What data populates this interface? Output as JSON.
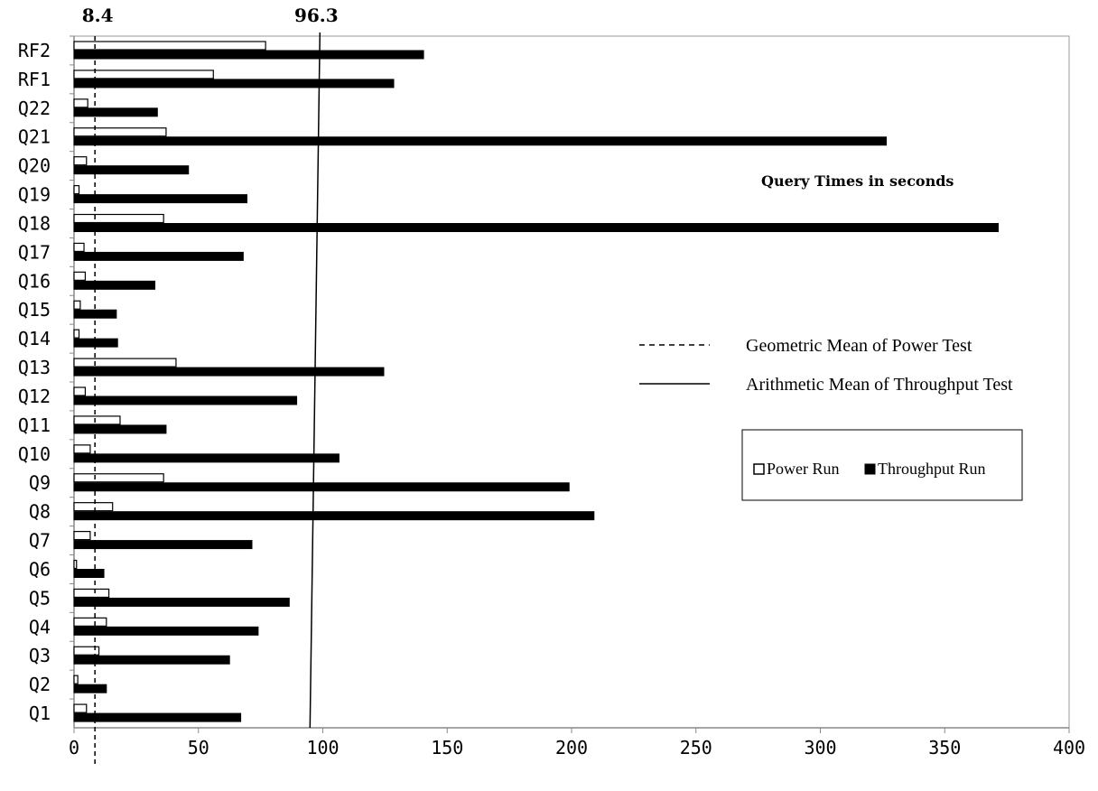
{
  "chart_data": {
    "type": "bar",
    "orientation": "horizontal",
    "categories": [
      "Q1",
      "Q2",
      "Q3",
      "Q4",
      "Q5",
      "Q6",
      "Q7",
      "Q8",
      "Q9",
      "Q10",
      "Q11",
      "Q12",
      "Q13",
      "Q14",
      "Q15",
      "Q16",
      "Q17",
      "Q18",
      "Q19",
      "Q20",
      "Q21",
      "Q22",
      "RF1",
      "RF2"
    ],
    "series": [
      {
        "name": "Power Run",
        "color": "#ffffff",
        "stroke": "#000000",
        "values": [
          5,
          1.5,
          10,
          13,
          14,
          1,
          6.5,
          15.5,
          36,
          6.5,
          18.5,
          4.5,
          41,
          2,
          2.5,
          4.5,
          4,
          36,
          2,
          5,
          37,
          5.5,
          56,
          77
        ]
      },
      {
        "name": "Throughput Run",
        "color": "#000000",
        "stroke": "#000000",
        "values": [
          67,
          13,
          62.5,
          74,
          86.5,
          12,
          71.5,
          209,
          199,
          106.5,
          37,
          89.5,
          124.5,
          17.5,
          17,
          32.5,
          68,
          371.5,
          69.5,
          46,
          326.5,
          33.5,
          128.5,
          140.5
        ]
      }
    ],
    "title": "Query Times in seconds",
    "xlabel": "",
    "ylabel": "",
    "xlim": [
      0,
      400
    ],
    "xticks": [
      0,
      50,
      100,
      150,
      200,
      250,
      300,
      350,
      400
    ],
    "reference_lines": [
      {
        "name": "Geometric Mean of Power Test",
        "value": 8.4,
        "label": "8.4",
        "style": "dashed"
      },
      {
        "name": "Arithmetic Mean of Throughput Test",
        "value": 96.3,
        "label": "96.3",
        "style": "solid"
      }
    ],
    "legend": {
      "placement": "right",
      "entries": [
        "Power Run",
        "Throughput Run"
      ]
    },
    "grid": false
  }
}
